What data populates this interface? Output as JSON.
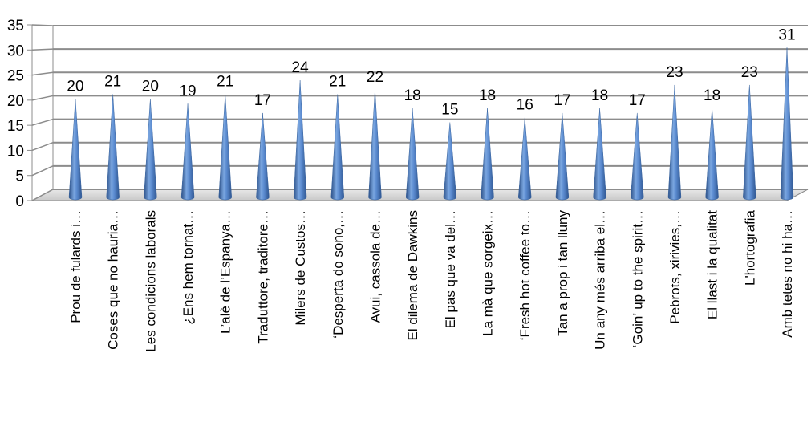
{
  "chart_data": {
    "type": "bar",
    "style": "3d-cone",
    "title": "",
    "xlabel": "",
    "ylabel": "",
    "ylim": [
      0,
      35
    ],
    "yticks": [
      0,
      5,
      10,
      15,
      20,
      25,
      30,
      35
    ],
    "grid": true,
    "legend": "none",
    "bar_color": "#4f81bd",
    "categories": [
      "Prou de fulards i…",
      "Coses que no hauria…",
      "Les condicions laborals",
      "¿Ens hem tornat…",
      "L’alè de l’Espanya…",
      "Traduttore, traditore…",
      "Milers de Custos…",
      "‘Desperta do sono,…",
      "Avui, cassola de…",
      "El dilema de Dawkins",
      "El pas que va del…",
      "La mà que sorgeix…",
      "‘Fresh hot coffee to…",
      "Tan a prop i tan lluny",
      "Un any més arriba el…",
      "‘Goin’ up to the spirit…",
      "Pebrots, xirivies,…",
      "El llast i la qualitat",
      "L'hortografia",
      "Amb tetes no hi ha…"
    ],
    "values": [
      20,
      21,
      20,
      19,
      21,
      17,
      24,
      21,
      22,
      18,
      15,
      18,
      16,
      17,
      18,
      17,
      23,
      18,
      23,
      31
    ]
  }
}
